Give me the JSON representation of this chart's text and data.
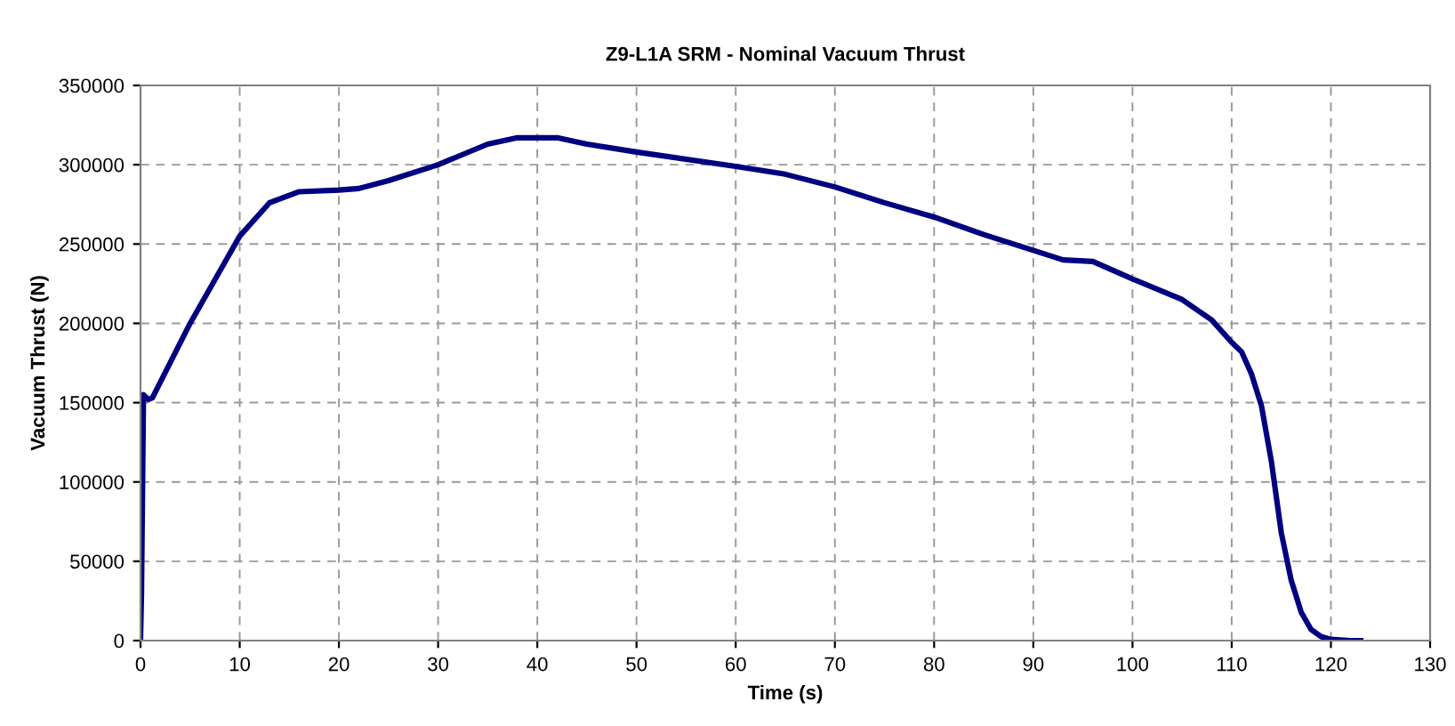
{
  "chart_data": {
    "type": "line",
    "title": "Z9-L1A SRM - Nominal Vacuum Thrust",
    "xlabel": "Time (s)",
    "ylabel": "Vacuum Thrust (N)",
    "xlim": [
      0,
      130
    ],
    "xticks": [
      0,
      10,
      20,
      30,
      40,
      50,
      60,
      70,
      80,
      90,
      100,
      110,
      120,
      130
    ],
    "ylim": [
      0,
      350000
    ],
    "yticks": [
      0,
      50000,
      100000,
      150000,
      200000,
      250000,
      300000,
      350000
    ],
    "grid": true,
    "marker": "none",
    "line_style": "solid",
    "series": [
      {
        "color": "#000080",
        "x": [
          0,
          0.1,
          0.3,
          0.8,
          1.2,
          5,
          10,
          13,
          16,
          20,
          22,
          25,
          30,
          35,
          38,
          42,
          45,
          50,
          60,
          65,
          70,
          75,
          80,
          85,
          90,
          93,
          96,
          100,
          105,
          108,
          110,
          111,
          112,
          113,
          114,
          115,
          116,
          117,
          118,
          119,
          120,
          122,
          123
        ],
        "values": [
          0,
          30000,
          155000,
          152000,
          153000,
          200000,
          255000,
          276000,
          283000,
          284000,
          285000,
          290000,
          300000,
          313000,
          317000,
          317000,
          313000,
          308000,
          299000,
          294000,
          286000,
          276000,
          267000,
          256000,
          246000,
          240000,
          239000,
          228000,
          215000,
          202000,
          188000,
          182000,
          168000,
          148000,
          113000,
          68000,
          38000,
          18000,
          7000,
          2500,
          800,
          0,
          0
        ]
      }
    ]
  }
}
